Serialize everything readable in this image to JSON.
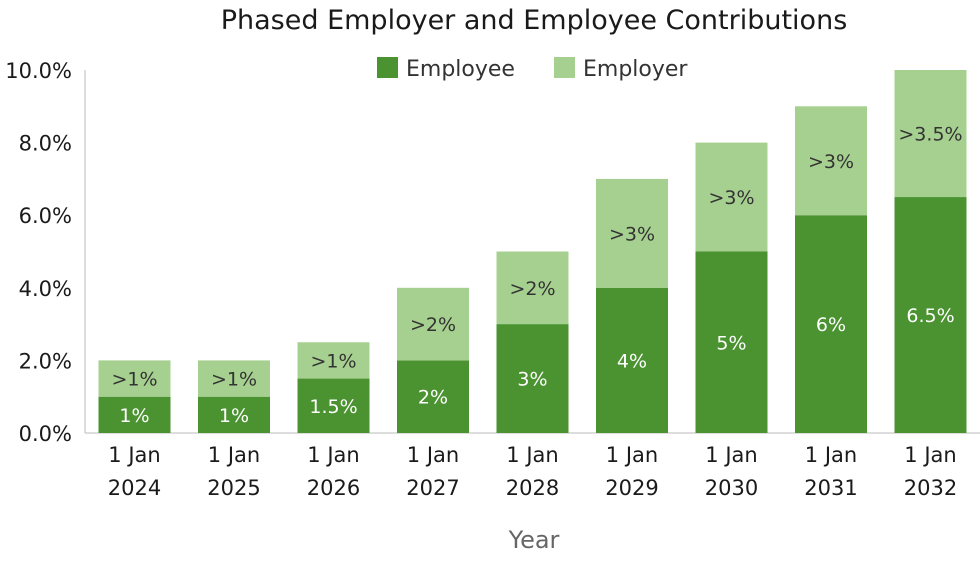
{
  "chart_data": {
    "type": "bar",
    "stacked": true,
    "title": "Phased Employer and Employee Contributions",
    "xlabel": "Year",
    "ylabel": "",
    "ylim": [
      0,
      10
    ],
    "yticks": [
      "0.0%",
      "2.0%",
      "4.0%",
      "6.0%",
      "8.0%",
      "10.0%"
    ],
    "grid": false,
    "legend_position": "top",
    "categories": [
      [
        "1 Jan",
        "2024"
      ],
      [
        "1 Jan",
        "2025"
      ],
      [
        "1 Jan",
        "2026"
      ],
      [
        "1 Jan",
        "2027"
      ],
      [
        "1 Jan",
        "2028"
      ],
      [
        "1 Jan",
        "2029"
      ],
      [
        "1 Jan",
        "2030"
      ],
      [
        "1 Jan",
        "2031"
      ],
      [
        "1 Jan",
        "2032"
      ]
    ],
    "series": [
      {
        "name": "Employee",
        "color": "#4a9330",
        "values": [
          1,
          1,
          1.5,
          2,
          3,
          4,
          5,
          6,
          6.5
        ],
        "labels": [
          "1%",
          "1%",
          "1.5%",
          "2%",
          "3%",
          "4%",
          "5%",
          "6%",
          "6.5%"
        ]
      },
      {
        "name": "Employer",
        "color": "#a6d08f",
        "values": [
          1,
          1,
          1,
          2,
          2,
          3,
          3,
          3,
          3.5
        ],
        "labels": [
          ">1%",
          ">1%",
          ">1%",
          ">2%",
          ">2%",
          ">3%",
          ">3%",
          ">3%",
          ">3.5%"
        ]
      }
    ]
  }
}
